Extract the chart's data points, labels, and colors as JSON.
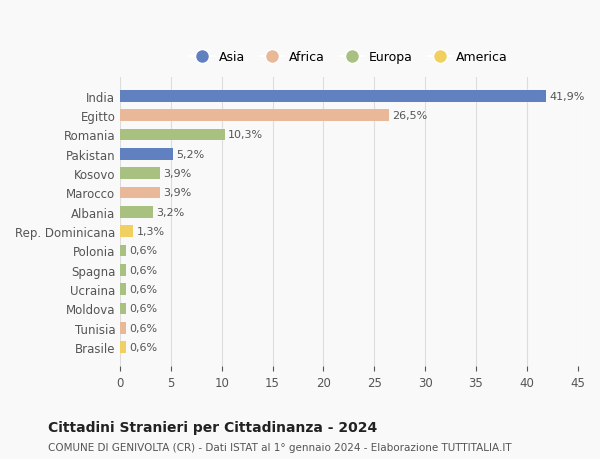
{
  "countries": [
    "India",
    "Egitto",
    "Romania",
    "Pakistan",
    "Kosovo",
    "Marocco",
    "Albania",
    "Rep. Dominicana",
    "Polonia",
    "Spagna",
    "Ucraina",
    "Moldova",
    "Tunisia",
    "Brasile"
  ],
  "values": [
    41.9,
    26.5,
    10.3,
    5.2,
    3.9,
    3.9,
    3.2,
    1.3,
    0.6,
    0.6,
    0.6,
    0.6,
    0.6,
    0.6
  ],
  "labels": [
    "41,9%",
    "26,5%",
    "10,3%",
    "5,2%",
    "3,9%",
    "3,9%",
    "3,2%",
    "1,3%",
    "0,6%",
    "0,6%",
    "0,6%",
    "0,6%",
    "0,6%",
    "0,6%"
  ],
  "continents": [
    "Asia",
    "Africa",
    "Europa",
    "Asia",
    "Europa",
    "Africa",
    "Europa",
    "America",
    "Europa",
    "Europa",
    "Europa",
    "Europa",
    "Africa",
    "America"
  ],
  "continent_colors": {
    "Asia": "#6080C0",
    "Africa": "#E8B898",
    "Europa": "#A8C080",
    "America": "#F0D060"
  },
  "legend_order": [
    "Asia",
    "Africa",
    "Europa",
    "America"
  ],
  "xlim": [
    0,
    45
  ],
  "xticks": [
    0,
    5,
    10,
    15,
    20,
    25,
    30,
    35,
    40,
    45
  ],
  "title": "Cittadini Stranieri per Cittadinanza - 2024",
  "subtitle": "COMUNE DI GENIVOLTA (CR) - Dati ISTAT al 1° gennaio 2024 - Elaborazione TUTTITALIA.IT",
  "bg_color": "#f9f9f9",
  "grid_color": "#dddddd"
}
